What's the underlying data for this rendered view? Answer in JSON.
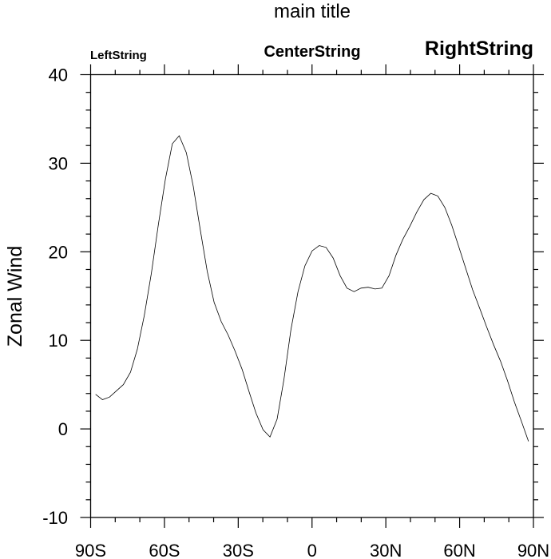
{
  "chart_data": {
    "type": "line",
    "title": "main title",
    "left_string": "LeftString",
    "center_string": "CenterString",
    "right_string": "RightString",
    "xlabel": "",
    "ylabel": "Zonal Wind",
    "xlim": [
      -90,
      90
    ],
    "ylim": [
      -10,
      40
    ],
    "x_ticks": [
      -90,
      -60,
      -30,
      0,
      30,
      60,
      90
    ],
    "x_tick_labels": [
      "90S",
      "60S",
      "30S",
      "0",
      "30N",
      "60N",
      "90N"
    ],
    "x_minor_step": 10,
    "y_ticks": [
      -10,
      0,
      10,
      20,
      30,
      40
    ],
    "y_tick_labels": [
      "-10",
      "0",
      "10",
      "20",
      "30",
      "40"
    ],
    "y_minor_step": 2,
    "grid": false,
    "line_color": "#000000",
    "series": [
      {
        "name": "Zonal Wind",
        "x": [
          -88.0,
          -85.2,
          -82.3,
          -79.5,
          -76.7,
          -73.8,
          -71.0,
          -68.2,
          -65.3,
          -62.5,
          -59.6,
          -56.8,
          -54.0,
          -51.1,
          -48.3,
          -45.5,
          -42.6,
          -39.8,
          -36.9,
          -34.1,
          -31.3,
          -28.4,
          -25.6,
          -22.8,
          -19.9,
          -17.1,
          -14.2,
          -11.4,
          -8.6,
          -5.7,
          -2.9,
          0.0,
          2.9,
          5.7,
          8.6,
          11.4,
          14.2,
          17.1,
          19.9,
          22.8,
          25.6,
          28.4,
          31.3,
          34.1,
          36.9,
          39.8,
          42.6,
          45.5,
          48.3,
          51.1,
          54.0,
          56.8,
          59.6,
          62.5,
          65.3,
          68.2,
          71.0,
          73.8,
          76.7,
          79.5,
          82.3,
          85.2,
          88.0
        ],
        "y": [
          3.9,
          3.3,
          3.6,
          4.3,
          5.0,
          6.4,
          9.0,
          12.8,
          17.6,
          23.0,
          28.2,
          32.2,
          33.1,
          31.2,
          27.4,
          22.6,
          17.8,
          14.3,
          12.1,
          10.6,
          8.8,
          6.7,
          4.2,
          1.8,
          -0.1,
          -0.9,
          1.1,
          5.6,
          11.2,
          15.5,
          18.4,
          20.1,
          20.7,
          20.5,
          19.3,
          17.3,
          15.9,
          15.5,
          15.9,
          16.0,
          15.8,
          15.9,
          17.3,
          19.6,
          21.4,
          22.9,
          24.5,
          25.9,
          26.6,
          26.3,
          25.0,
          23.0,
          20.6,
          18.1,
          15.7,
          13.6,
          11.5,
          9.5,
          7.6,
          5.4,
          3.0,
          0.8,
          -1.4
        ]
      }
    ]
  }
}
